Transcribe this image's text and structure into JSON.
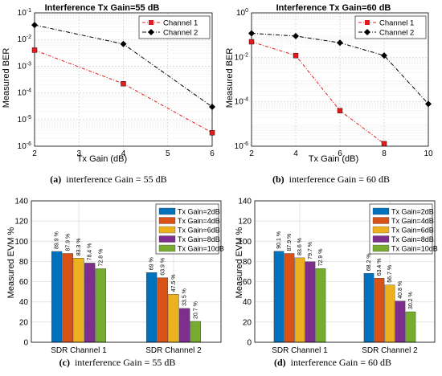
{
  "colors": {
    "channel1": "#e41a1c",
    "channel2": "#000000",
    "bar_series": [
      "#0072bd",
      "#d95319",
      "#edb120",
      "#7e2f8e",
      "#77ac30"
    ]
  },
  "chart_data": [
    {
      "type": "line",
      "title": "Interference Tx Gain=55 dB",
      "xlabel": "Tx Gain (dB)",
      "ylabel": "Measured BER",
      "yscale": "log",
      "xlim": [
        2,
        6
      ],
      "ylim": [
        1e-06,
        0.1
      ],
      "xticks": [
        "2",
        "3",
        "4",
        "5",
        "6"
      ],
      "yticks": [
        {
          "value": 1e-06,
          "base": "10",
          "exp": "-6"
        },
        {
          "value": 1e-05,
          "base": "10",
          "exp": "-5"
        },
        {
          "value": 0.0001,
          "base": "10",
          "exp": "-4"
        },
        {
          "value": 0.001,
          "base": "10",
          "exp": "-3"
        },
        {
          "value": 0.01,
          "base": "10",
          "exp": "-2"
        },
        {
          "value": 0.1,
          "base": "10",
          "exp": "-1"
        }
      ],
      "grid": true,
      "legend_position": "top-right",
      "series": [
        {
          "name": "Channel 1",
          "marker": "square",
          "x": [
            2,
            4,
            6
          ],
          "values": [
            0.004,
            0.00022,
            3.2e-06
          ]
        },
        {
          "name": "Channel 2",
          "marker": "diamond",
          "x": [
            2,
            4,
            6
          ],
          "values": [
            0.035,
            0.0068,
            3e-05
          ]
        }
      ],
      "caption_tag": "(a)",
      "caption_text": "interference Gain = 55 dB"
    },
    {
      "type": "line",
      "title": "Interference Tx Gain=60 dB",
      "xlabel": "Tx Gain (dB)",
      "ylabel": "Measured BER",
      "yscale": "log",
      "xlim": [
        2,
        10
      ],
      "ylim": [
        1e-06,
        1
      ],
      "xticks": [
        "2",
        "4",
        "6",
        "8",
        "10"
      ],
      "yticks": [
        {
          "value": 1e-06,
          "base": "10",
          "exp": "-6"
        },
        {
          "value": 0.0001,
          "base": "10",
          "exp": "-4"
        },
        {
          "value": 0.01,
          "base": "10",
          "exp": "-2"
        },
        {
          "value": 1,
          "base": "10",
          "exp": "0"
        }
      ],
      "grid": true,
      "legend_position": "top-right",
      "series": [
        {
          "name": "Channel 1",
          "marker": "square",
          "x": [
            2,
            4,
            6,
            8
          ],
          "values": [
            0.05,
            0.012,
            4e-05,
            1.3e-06
          ]
        },
        {
          "name": "Channel 2",
          "marker": "diamond",
          "x": [
            2,
            4,
            6,
            8,
            10
          ],
          "values": [
            0.12,
            0.09,
            0.045,
            0.012,
            8e-05
          ]
        }
      ],
      "caption_tag": "(b)",
      "caption_text": "interference Gain = 60 dB"
    },
    {
      "type": "bar",
      "categories": [
        "SDR Channel 1",
        "SDR Channel 2"
      ],
      "ylabel": "Measured EVM %",
      "ylim": [
        0,
        140
      ],
      "yticks": [
        "0",
        "20",
        "40",
        "60",
        "80",
        "100",
        "120",
        "140"
      ],
      "grid": true,
      "legend_position": "top-right",
      "series": [
        {
          "name": "Tx Gain=2dB",
          "values": [
            89.9,
            69
          ],
          "labels": [
            "89.9 %",
            "69 %"
          ]
        },
        {
          "name": "Tx Gain=4dB",
          "values": [
            87.9,
            63.9
          ],
          "labels": [
            "87.9 %",
            "63.9 %"
          ]
        },
        {
          "name": "Tx Gain=6dB",
          "values": [
            83.3,
            47.5
          ],
          "labels": [
            "83.3 %",
            "47.5 %"
          ]
        },
        {
          "name": "Tx Gain=8dB",
          "values": [
            78.4,
            33.5
          ],
          "labels": [
            "78.4 %",
            "33.5 %"
          ]
        },
        {
          "name": "Tx Gain=10dB",
          "values": [
            72.8,
            20.7
          ],
          "labels": [
            "72.8 %",
            "20.7 %"
          ]
        }
      ],
      "caption_tag": "(c)",
      "caption_text": "interference Gain = 55 dB"
    },
    {
      "type": "bar",
      "categories": [
        "SDR Channel 1",
        "SDR Channel 2"
      ],
      "ylabel": "Measured EVM %",
      "ylim": [
        0,
        140
      ],
      "yticks": [
        "0",
        "20",
        "40",
        "60",
        "80",
        "100",
        "120",
        "140"
      ],
      "grid": true,
      "legend_position": "top-right",
      "series": [
        {
          "name": "Tx Gain=2dB",
          "values": [
            90.1,
            68.2
          ],
          "labels": [
            "90.1 %",
            "68.2 %"
          ]
        },
        {
          "name": "Tx Gain=4dB",
          "values": [
            87.9,
            63.4
          ],
          "labels": [
            "87.9 %",
            "63.4 %"
          ]
        },
        {
          "name": "Tx Gain=6dB",
          "values": [
            83.6,
            56.7
          ],
          "labels": [
            "83.6 %",
            "56.7 %"
          ]
        },
        {
          "name": "Tx Gain=8dB",
          "values": [
            79.7,
            40.8
          ],
          "labels": [
            "79.7 %",
            "40.8 %"
          ]
        },
        {
          "name": "Tx Gain=10dB",
          "values": [
            72.9,
            30.2
          ],
          "labels": [
            "72.9 %",
            "30.2 %"
          ]
        }
      ],
      "caption_tag": "(d)",
      "caption_text": "interference Gain = 60 dB"
    }
  ]
}
